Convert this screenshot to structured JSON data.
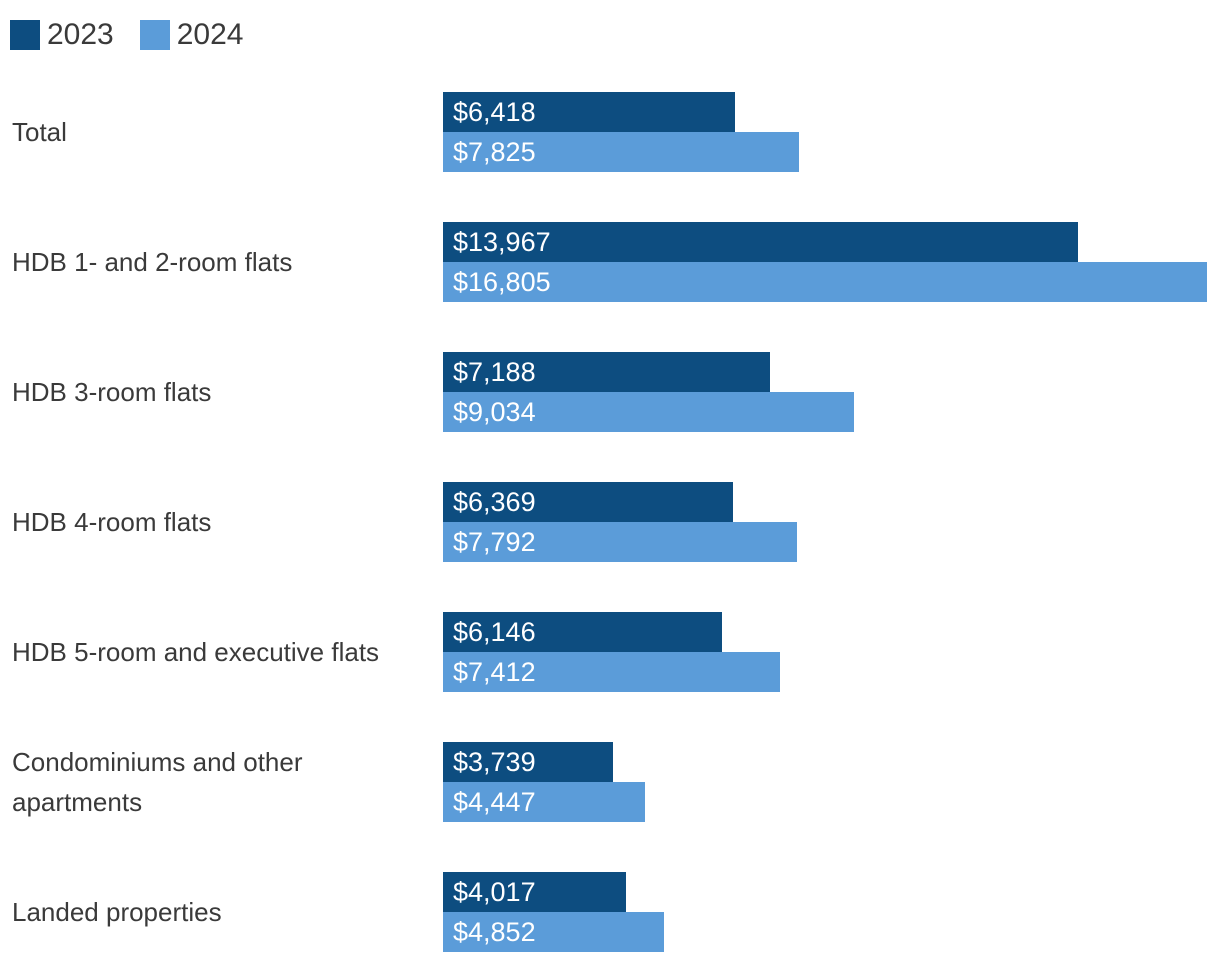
{
  "legend": {
    "items": [
      {
        "label": "2023"
      },
      {
        "label": "2024"
      }
    ]
  },
  "colors": {
    "series_2023": "#0d4d80",
    "series_2024": "#5b9cd9",
    "category_text": "#3a3a3a",
    "value_text": "#ffffff",
    "background": "#ffffff"
  },
  "chart_data": {
    "type": "bar",
    "orientation": "horizontal",
    "title": "",
    "xlabel": "",
    "ylabel": "",
    "grid": false,
    "legend_position": "top-left",
    "value_prefix": "$",
    "xlim": [
      0,
      16805
    ],
    "categories": [
      "Total",
      "HDB 1- and 2-room flats",
      "HDB 3-room flats",
      "HDB 4-room flats",
      "HDB 5-room and executive flats",
      "Condominiums and other apartments",
      "Landed properties"
    ],
    "series": [
      {
        "name": "2023",
        "color": "#0d4d80",
        "values": [
          6418,
          13967,
          7188,
          6369,
          6146,
          3739,
          4017
        ],
        "display": [
          "$6,418",
          "$13,967",
          "$7,188",
          "$6,369",
          "$6,146",
          "$3,739",
          "$4,017"
        ]
      },
      {
        "name": "2024",
        "color": "#5b9cd9",
        "values": [
          7825,
          16805,
          9034,
          7792,
          7412,
          4447,
          4852
        ],
        "display": [
          "$7,825",
          "$16,805",
          "$9,034",
          "$7,792",
          "$7,412",
          "$4,447",
          "$4,852"
        ]
      }
    ]
  }
}
